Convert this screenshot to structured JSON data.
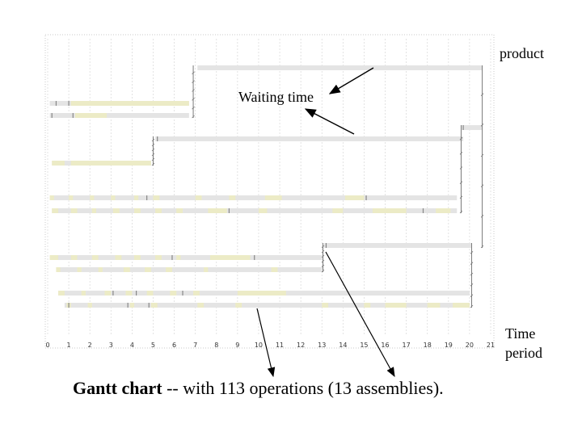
{
  "caption": {
    "bold": "Gantt chart",
    "rest": " -- with 113 operations (13 assemblies)."
  },
  "annotations": {
    "product": "product",
    "waiting_time": "Waiting time",
    "time_line1": "Time",
    "time_line2": "period"
  },
  "colors": {
    "bar": "#e4e4e4",
    "op": "#ecebc6",
    "tick": "#888888",
    "grid": "#d7d7d7",
    "connector": "#7a7a7a"
  },
  "chart_data": {
    "type": "gantt",
    "x_ticks": [
      "0",
      "1",
      "2",
      "3",
      "4",
      "5",
      "6",
      "7",
      "8",
      "9",
      "10",
      "11",
      "12",
      "13",
      "14",
      "15",
      "16",
      "17",
      "18",
      "19",
      "20",
      "21"
    ],
    "xlim": [
      0,
      21
    ],
    "rows": [
      {
        "name": "",
        "start": 7.1,
        "end": 20.6,
        "ops": [],
        "marks": []
      },
      {
        "name": "",
        "start": 0.1,
        "end": 6.7,
        "ops": [
          [
            1.1,
            6.7
          ]
        ],
        "marks": [
          0.4,
          1.0
        ]
      },
      {
        "name": "",
        "start": 0.1,
        "end": 6.7,
        "ops": [
          [
            1.3,
            2.8
          ]
        ],
        "marks": [
          0.2,
          1.2
        ]
      },
      {
        "name": "",
        "start": 19.6,
        "end": 20.6,
        "ops": [],
        "marks": [
          19.7
        ]
      },
      {
        "name": "",
        "start": 5.1,
        "end": 19.7,
        "ops": [],
        "marks": [
          5.2
        ]
      },
      {
        "name": "",
        "start": 0.2,
        "end": 4.9,
        "ops": [
          [
            0.2,
            0.8
          ],
          [
            1.1,
            4.9
          ]
        ],
        "marks": []
      },
      {
        "name": "",
        "start": 0.1,
        "end": 19.4,
        "ops": [
          [
            0.1,
            0.3
          ],
          [
            1.0,
            1.2
          ],
          [
            2.0,
            2.2
          ],
          [
            3.0,
            3.2
          ],
          [
            4.1,
            4.3
          ],
          [
            5.0,
            5.3
          ],
          [
            7.0,
            7.3
          ],
          [
            8.6,
            8.9
          ],
          [
            10.3,
            11.1
          ],
          [
            14.1,
            15.0
          ]
        ],
        "marks": [
          4.7,
          15.1
        ]
      },
      {
        "name": "",
        "start": 0.2,
        "end": 19.4,
        "ops": [
          [
            0.2,
            0.5
          ],
          [
            1.1,
            1.4
          ],
          [
            2.1,
            2.3
          ],
          [
            3.1,
            3.4
          ],
          [
            4.1,
            4.4
          ],
          [
            5.1,
            5.4
          ],
          [
            6.1,
            6.4
          ],
          [
            7.6,
            8.5
          ],
          [
            10.0,
            10.4
          ],
          [
            13.5,
            14.0
          ],
          [
            15.4,
            17.0
          ],
          [
            18.4,
            19.1
          ]
        ],
        "marks": [
          8.6,
          17.8
        ]
      },
      {
        "name": "",
        "start": 13.1,
        "end": 20.1,
        "ops": [],
        "marks": [
          13.2
        ]
      },
      {
        "name": "",
        "start": 0.1,
        "end": 13.0,
        "ops": [
          [
            0.1,
            0.5
          ],
          [
            1.1,
            1.4
          ],
          [
            2.1,
            2.4
          ],
          [
            3.2,
            3.5
          ],
          [
            4.1,
            4.4
          ],
          [
            5.1,
            5.4
          ],
          [
            6.1,
            6.3
          ],
          [
            7.7,
            9.6
          ]
        ],
        "marks": [
          5.9,
          9.8
        ]
      },
      {
        "name": "",
        "start": 0.4,
        "end": 13.0,
        "ops": [
          [
            0.4,
            0.6
          ],
          [
            1.4,
            1.6
          ],
          [
            2.4,
            2.6
          ],
          [
            3.6,
            3.9
          ],
          [
            4.6,
            4.9
          ],
          [
            5.6,
            5.9
          ],
          [
            7.4,
            7.6
          ],
          [
            10.6,
            10.9
          ]
        ],
        "marks": []
      },
      {
        "name": "",
        "start": 0.5,
        "end": 20.0,
        "ops": [
          [
            0.5,
            0.8
          ],
          [
            1.6,
            1.8
          ],
          [
            2.7,
            3.0
          ],
          [
            3.7,
            4.0
          ],
          [
            4.7,
            5.0
          ],
          [
            5.8,
            6.1
          ],
          [
            6.9,
            7.2
          ],
          [
            9.0,
            11.3
          ]
        ],
        "marks": [
          3.1,
          4.2,
          6.4
        ]
      },
      {
        "name": "",
        "start": 0.8,
        "end": 20.0,
        "ops": [
          [
            0.9,
            1.1
          ],
          [
            1.9,
            2.1
          ],
          [
            3.9,
            4.1
          ],
          [
            4.9,
            5.2
          ],
          [
            7.1,
            7.4
          ],
          [
            8.9,
            9.2
          ],
          [
            13.0,
            13.3
          ],
          [
            15.0,
            15.3
          ],
          [
            16.0,
            17.0
          ],
          [
            18.0,
            18.6
          ],
          [
            19.2,
            20.0
          ]
        ],
        "marks": [
          1.0,
          3.8,
          4.8
        ]
      }
    ],
    "connectors": [
      {
        "from_rows": [
          1,
          2
        ],
        "to_row": 0,
        "x": 6.9
      },
      {
        "from_rows": [
          4,
          6,
          7
        ],
        "to_row": 3,
        "x": 19.6
      },
      {
        "from_rows": [
          5
        ],
        "to_row": 4,
        "x": 5.0
      },
      {
        "from_rows": [
          9,
          10
        ],
        "to_row": 8,
        "x": 13.05
      },
      {
        "from_rows": [
          11,
          12
        ],
        "to_row": 8,
        "x": 20.1
      },
      {
        "from_rows": [
          3,
          8
        ],
        "to_row": 0,
        "x": 20.6
      }
    ]
  }
}
